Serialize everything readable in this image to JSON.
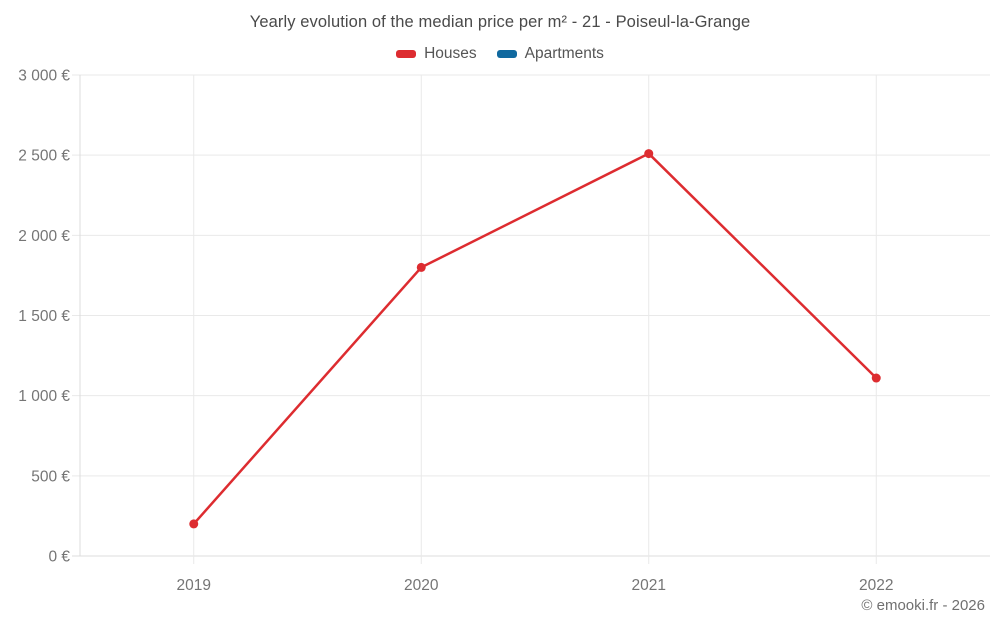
{
  "footer_credit": "© emooki.fr - 2026",
  "chart_data": {
    "type": "line",
    "title": "Yearly evolution of the median price per m² - 21 - Poiseul-la-Grange",
    "categories": [
      "2019",
      "2020",
      "2021",
      "2022"
    ],
    "series": [
      {
        "name": "Houses",
        "color": "#dd2c30",
        "values": [
          200,
          1800,
          2510,
          1110
        ]
      },
      {
        "name": "Apartments",
        "color": "#10699f",
        "values": []
      }
    ],
    "xlabel": "",
    "ylabel": "",
    "ylim": [
      0,
      3000
    ],
    "ytick_step": 500,
    "ytick_labels": [
      "0 €",
      "500 €",
      "1 000 €",
      "1 500 €",
      "2 000 €",
      "2 500 €",
      "3 000 €"
    ],
    "currency": "€",
    "grid": true,
    "legend_position": "top"
  }
}
